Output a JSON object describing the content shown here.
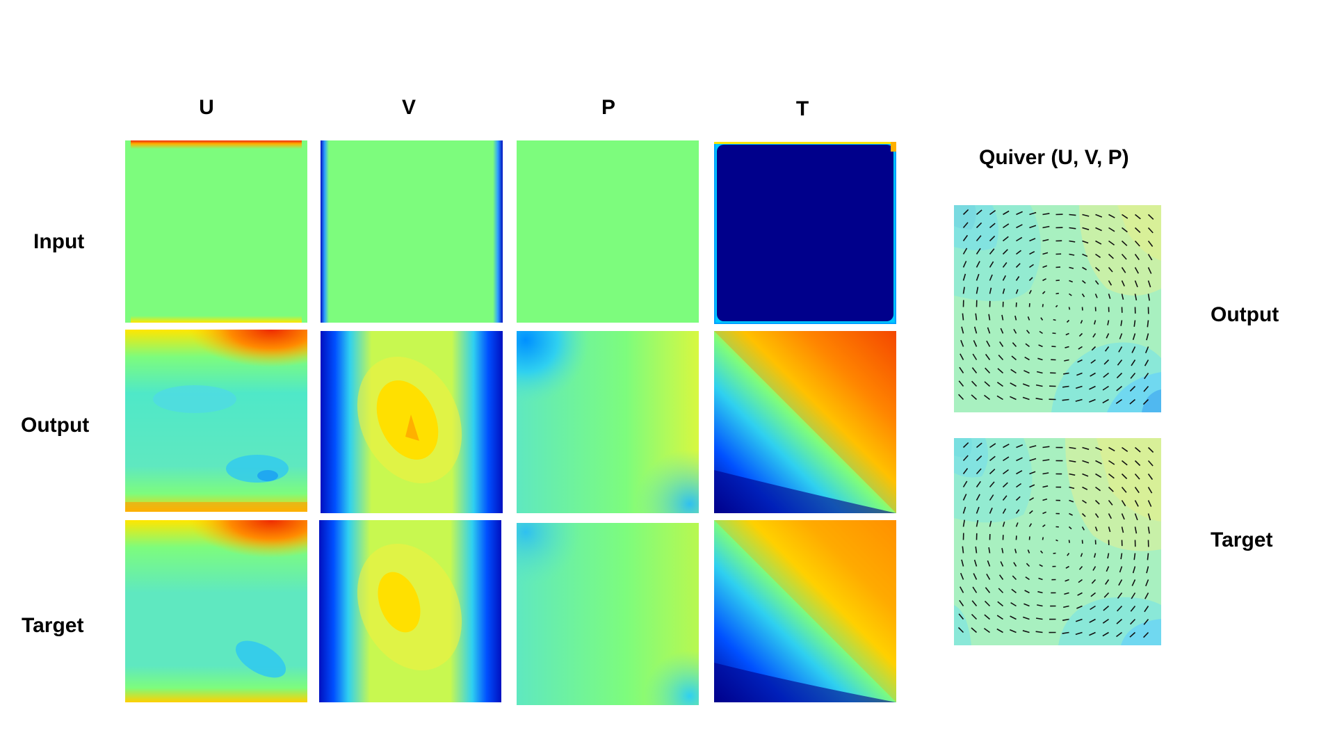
{
  "figure": {
    "columns": [
      "U",
      "V",
      "P",
      "T"
    ],
    "rows": [
      "Input",
      "Output",
      "Target"
    ],
    "quiver": {
      "title": "Quiver (U, V, P)",
      "rows": [
        "Output",
        "Target"
      ]
    }
  },
  "colors": {
    "darkblue": "#00008b",
    "blue": "#0030ff",
    "cyan": "#2fd0f0",
    "teal": "#5fe8c0",
    "green": "#7dfc7d",
    "yellow": "#ffe600",
    "orange": "#ff9a00",
    "red": "#ee2b00",
    "quiver_bg": "#a8f0c0"
  }
}
